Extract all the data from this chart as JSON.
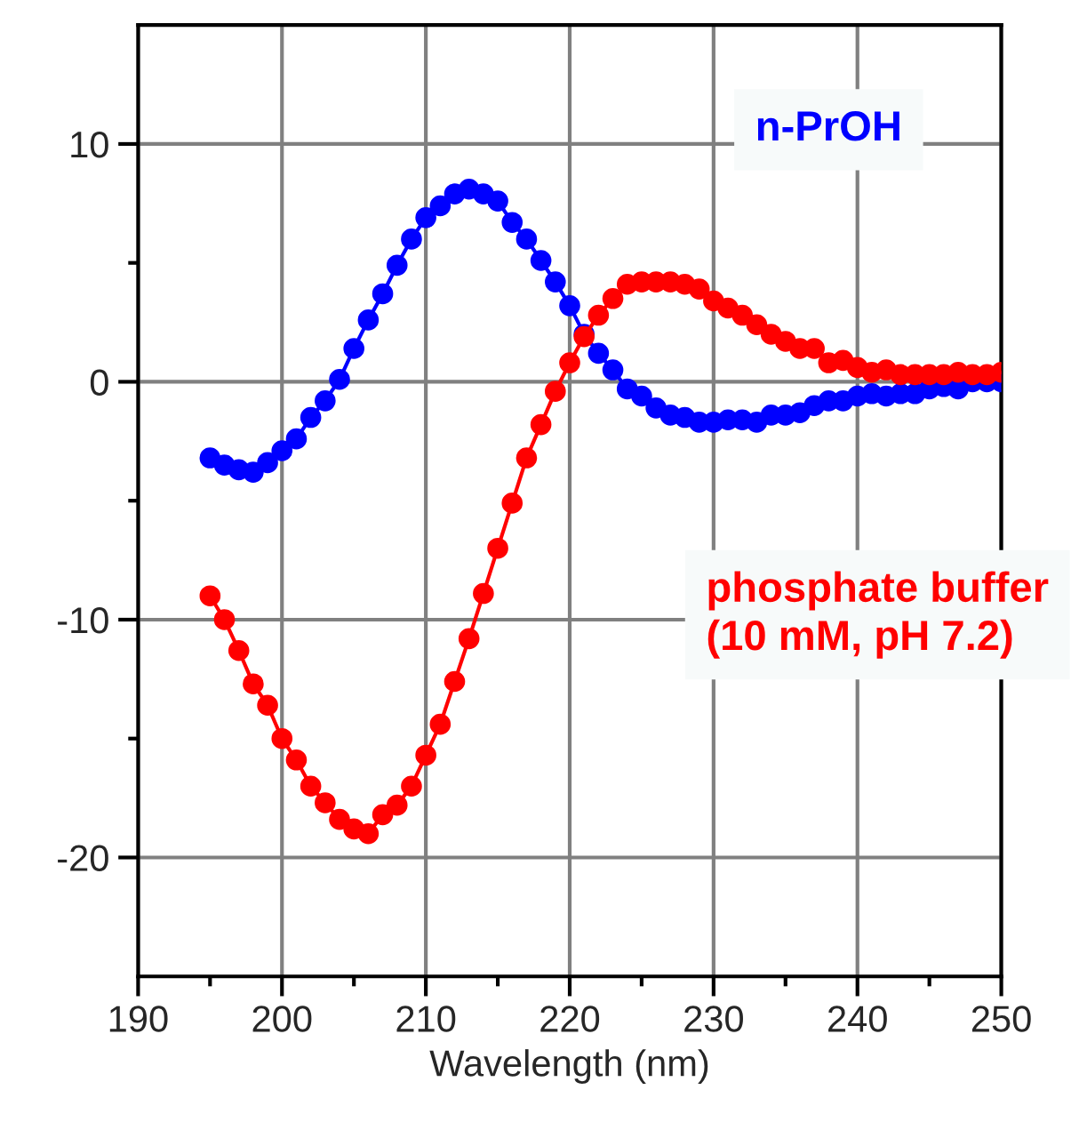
{
  "chart_data": {
    "type": "line",
    "xlabel": "Wavelength (nm)",
    "x": [
      195,
      196,
      197,
      198,
      199,
      200,
      201,
      202,
      203,
      204,
      205,
      206,
      207,
      208,
      209,
      210,
      211,
      212,
      213,
      214,
      215,
      216,
      217,
      218,
      219,
      220,
      221,
      222,
      223,
      224,
      225,
      226,
      227,
      228,
      229,
      230,
      231,
      232,
      233,
      234,
      235,
      236,
      237,
      238,
      239,
      240,
      241,
      242,
      243,
      244,
      245,
      246,
      247,
      248,
      249,
      250
    ],
    "series": [
      {
        "name": "n-PrOH",
        "color": "#0000ff",
        "values": [
          -3.2,
          -3.5,
          -3.7,
          -3.8,
          -3.4,
          -2.9,
          -2.4,
          -1.5,
          -0.8,
          0.1,
          1.4,
          2.6,
          3.7,
          4.9,
          6.0,
          6.9,
          7.4,
          7.9,
          8.1,
          7.9,
          7.6,
          6.7,
          6.0,
          5.1,
          4.2,
          3.2,
          2.0,
          1.2,
          0.5,
          -0.3,
          -0.6,
          -1.1,
          -1.4,
          -1.5,
          -1.7,
          -1.7,
          -1.6,
          -1.6,
          -1.7,
          -1.4,
          -1.4,
          -1.3,
          -1.0,
          -0.8,
          -0.8,
          -0.6,
          -0.5,
          -0.6,
          -0.5,
          -0.5,
          -0.3,
          -0.2,
          -0.3,
          0.0,
          0.0,
          0.0
        ]
      },
      {
        "name": "phosphate buffer\n(10 mM, pH 7.2)",
        "color": "#ff0000",
        "values": [
          -9.0,
          -10.0,
          -11.3,
          -12.7,
          -13.6,
          -15.0,
          -15.9,
          -17.0,
          -17.7,
          -18.4,
          -18.8,
          -19.0,
          -18.2,
          -17.8,
          -17.0,
          -15.7,
          -14.4,
          -12.6,
          -10.8,
          -8.9,
          -7.0,
          -5.1,
          -3.2,
          -1.8,
          -0.4,
          0.8,
          1.9,
          2.8,
          3.5,
          4.1,
          4.2,
          4.2,
          4.2,
          4.1,
          3.9,
          3.4,
          3.1,
          2.8,
          2.4,
          2.0,
          1.7,
          1.4,
          1.4,
          0.8,
          0.9,
          0.6,
          0.4,
          0.5,
          0.3,
          0.3,
          0.3,
          0.3,
          0.4,
          0.3,
          0.3,
          0.4
        ]
      }
    ],
    "xlim": [
      190,
      250
    ],
    "ylim": [
      -25,
      15
    ],
    "xticks": [
      190,
      {
        "value": 195,
        "label": null
      },
      200,
      {
        "value": 205,
        "label": null
      },
      210,
      {
        "value": 215,
        "label": null
      },
      220,
      {
        "value": 225,
        "label": null
      },
      230,
      {
        "value": 235,
        "label": null
      },
      240,
      {
        "value": 245,
        "label": null
      },
      250
    ],
    "yticks": [
      -20,
      {
        "value": -15,
        "label": null
      },
      -10,
      {
        "value": -5,
        "label": null
      },
      0,
      {
        "value": 5,
        "label": null
      },
      10
    ],
    "grid": true,
    "marker": "circle",
    "line_style": "solid",
    "legend": false
  }
}
